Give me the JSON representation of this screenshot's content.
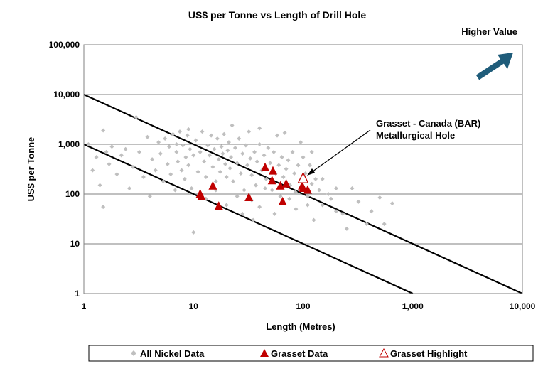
{
  "chart_data": {
    "type": "scatter",
    "title": "US$ per Tonne vs Length of Drill Hole",
    "xlabel": "Length (Metres)",
    "ylabel": "US$ per Tonne",
    "xscale": "log",
    "yscale": "log",
    "xlim": [
      1,
      10000
    ],
    "ylim": [
      1,
      100000
    ],
    "xticks": [
      {
        "v": 1,
        "label": "1"
      },
      {
        "v": 10,
        "label": "10"
      },
      {
        "v": 100,
        "label": "100"
      },
      {
        "v": 1000,
        "label": "1,000"
      },
      {
        "v": 10000,
        "label": "10,000"
      }
    ],
    "yticks": [
      {
        "v": 1,
        "label": "1"
      },
      {
        "v": 10,
        "label": "10"
      },
      {
        "v": 100,
        "label": "100"
      },
      {
        "v": 1000,
        "label": "1,000"
      },
      {
        "v": 10000,
        "label": "10,000"
      },
      {
        "v": 100000,
        "label": "100,000"
      }
    ],
    "grid": "horizontal",
    "legend_position": "bottom",
    "annotations": {
      "higher_value": "Higher Value",
      "callout_line1": "Grasset - Canada  (BAR)",
      "callout_line2": "Metallurgical Hole"
    },
    "reference_lines": [
      {
        "from": [
          1,
          10000
        ],
        "to": [
          10000,
          1
        ]
      },
      {
        "from": [
          1,
          1000
        ],
        "to": [
          1000,
          1
        ]
      }
    ],
    "series": [
      {
        "name": "All Nickel Data",
        "marker": "diamond",
        "color": "#bfbfbf",
        "points": [
          [
            1.1,
            1000
          ],
          [
            1.2,
            300
          ],
          [
            1.3,
            550
          ],
          [
            1.4,
            150
          ],
          [
            1.5,
            1900
          ],
          [
            1.5,
            55
          ],
          [
            1.6,
            700
          ],
          [
            1.7,
            400
          ],
          [
            1.8,
            900
          ],
          [
            2,
            250
          ],
          [
            2.2,
            600
          ],
          [
            2.4,
            800
          ],
          [
            2.6,
            130
          ],
          [
            2.8,
            350
          ],
          [
            3,
            3500
          ],
          [
            3.2,
            700
          ],
          [
            3.5,
            220
          ],
          [
            3.8,
            1400
          ],
          [
            4,
            90
          ],
          [
            4.2,
            500
          ],
          [
            4.5,
            300
          ],
          [
            4.8,
            1100
          ],
          [
            5,
            650
          ],
          [
            5.3,
            180
          ],
          [
            5.5,
            1300
          ],
          [
            5.8,
            400
          ],
          [
            6,
            900
          ],
          [
            6.2,
            250
          ],
          [
            6.5,
            1600
          ],
          [
            6.8,
            120
          ],
          [
            7,
            700
          ],
          [
            7.2,
            450
          ],
          [
            7.5,
            1800
          ],
          [
            7.8,
            300
          ],
          [
            8,
            950
          ],
          [
            8.3,
            200
          ],
          [
            8.5,
            550
          ],
          [
            8.8,
            1500
          ],
          [
            9,
            380
          ],
          [
            9.3,
            800
          ],
          [
            9.6,
            130
          ],
          [
            10,
            17
          ],
          [
            10,
            600
          ],
          [
            10.5,
            1200
          ],
          [
            11,
            280
          ],
          [
            11.5,
            700
          ],
          [
            12,
            1800
          ],
          [
            12.5,
            450
          ],
          [
            13,
            220
          ],
          [
            13.5,
            950
          ],
          [
            14,
            600
          ],
          [
            14.5,
            1500
          ],
          [
            15,
            350
          ],
          [
            15.5,
            800
          ],
          [
            16,
            180
          ],
          [
            16.5,
            1300
          ],
          [
            17,
            500
          ],
          [
            17.5,
            280
          ],
          [
            18,
            900
          ],
          [
            18.5,
            650
          ],
          [
            19,
            1600
          ],
          [
            19.5,
            400
          ],
          [
            20,
            220
          ],
          [
            20.5,
            750
          ],
          [
            21,
            1100
          ],
          [
            21.5,
            330
          ],
          [
            22,
            550
          ],
          [
            22.5,
            2400
          ],
          [
            23,
            180
          ],
          [
            24,
            850
          ],
          [
            25,
            420
          ],
          [
            26,
            1300
          ],
          [
            27,
            260
          ],
          [
            28,
            650
          ],
          [
            29,
            120
          ],
          [
            30,
            950
          ],
          [
            31,
            380
          ],
          [
            32,
            1800
          ],
          [
            33,
            520
          ],
          [
            34,
            240
          ],
          [
            35,
            30
          ],
          [
            36,
            700
          ],
          [
            37,
            150
          ],
          [
            38,
            450
          ],
          [
            40,
            1000
          ],
          [
            42,
            300
          ],
          [
            44,
            600
          ],
          [
            46,
            200
          ],
          [
            48,
            850
          ],
          [
            50,
            420
          ],
          [
            52,
            120
          ],
          [
            54,
            700
          ],
          [
            56,
            260
          ],
          [
            58,
            1500
          ],
          [
            60,
            380
          ],
          [
            62,
            90
          ],
          [
            64,
            550
          ],
          [
            66,
            220
          ],
          [
            68,
            1700
          ],
          [
            70,
            320
          ],
          [
            73,
            480
          ],
          [
            76,
            150
          ],
          [
            80,
            700
          ],
          [
            83,
            260
          ],
          [
            86,
            50
          ],
          [
            90,
            380
          ],
          [
            95,
            180
          ],
          [
            100,
            550
          ],
          [
            105,
            260
          ],
          [
            110,
            90
          ],
          [
            115,
            380
          ],
          [
            120,
            160
          ],
          [
            125,
            30
          ],
          [
            130,
            200
          ],
          [
            140,
            120
          ],
          [
            150,
            60
          ],
          [
            170,
            100
          ],
          [
            200,
            45
          ],
          [
            250,
            20
          ],
          [
            280,
            130
          ],
          [
            320,
            70
          ],
          [
            380,
            25
          ],
          [
            420,
            45
          ],
          [
            500,
            85
          ],
          [
            550,
            25
          ],
          [
            650,
            65
          ],
          [
            13,
            80
          ],
          [
            16,
            120
          ],
          [
            20,
            60
          ],
          [
            25,
            90
          ],
          [
            28,
            40
          ],
          [
            34,
            75
          ],
          [
            40,
            55
          ],
          [
            45,
            130
          ],
          [
            55,
            40
          ],
          [
            75,
            80
          ],
          [
            85,
            110
          ],
          [
            110,
            60
          ],
          [
            180,
            80
          ],
          [
            230,
            40
          ],
          [
            150,
            200
          ],
          [
            200,
            130
          ],
          [
            120,
            700
          ],
          [
            95,
            1100
          ],
          [
            40,
            2100
          ],
          [
            7,
            1000
          ],
          [
            9,
            2000
          ]
        ]
      },
      {
        "name": "Grasset Data",
        "marker": "triangle",
        "color": "#c00000",
        "points": [
          [
            11.5,
            100
          ],
          [
            11.8,
            88
          ],
          [
            15,
            145
          ],
          [
            17,
            57
          ],
          [
            32,
            85
          ],
          [
            45,
            340
          ],
          [
            53,
            290
          ],
          [
            52,
            185
          ],
          [
            62,
            145
          ],
          [
            65,
            70
          ],
          [
            70,
            160
          ],
          [
            98,
            145
          ],
          [
            100,
            130
          ],
          [
            110,
            120
          ]
        ]
      },
      {
        "name": "Grasset Highlight",
        "marker": "triangle-open",
        "color": "#c00000",
        "points": [
          [
            100,
            205
          ]
        ]
      }
    ]
  },
  "colors": {
    "arrow": "#1f5c7a",
    "grid": "#808080"
  }
}
